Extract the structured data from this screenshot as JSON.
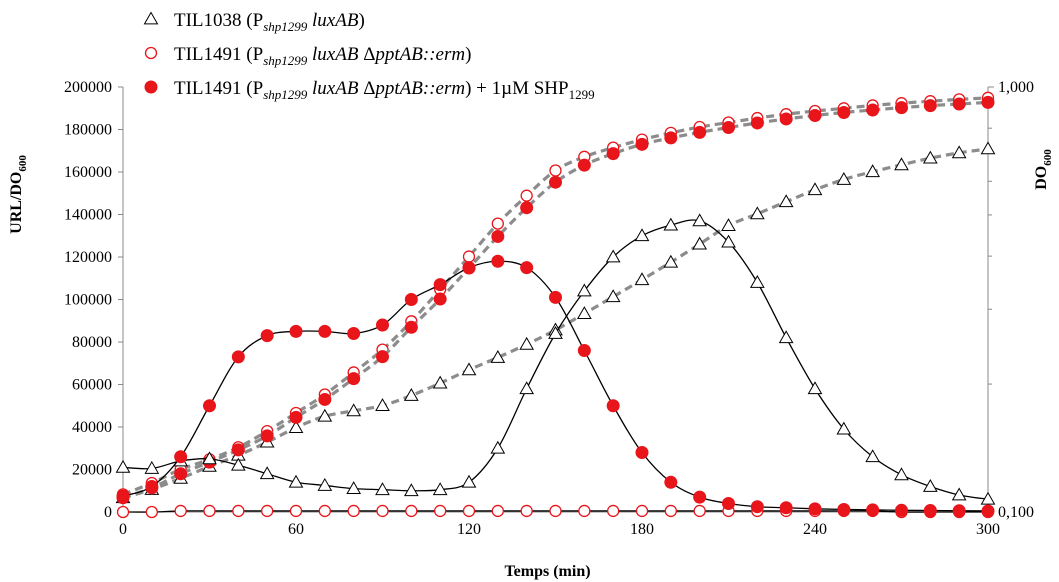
{
  "chart_data": {
    "type": "line",
    "xlabel": "Temps (min)",
    "ylabel_left": {
      "main": "URL/DO",
      "sub": "600"
    },
    "ylabel_right": {
      "main": "DO",
      "sub": "600"
    },
    "xlim": [
      0,
      300
    ],
    "ylim_left": [
      0,
      200000
    ],
    "ylim_right": [
      0.1,
      1.0
    ],
    "right_axis_scale": "log",
    "x_ticks": [
      "0",
      "60",
      "120",
      "180",
      "240",
      "300"
    ],
    "y_left_ticks": [
      "0",
      "20000",
      "40000",
      "60000",
      "80000",
      "100000",
      "120000",
      "140000",
      "160000",
      "180000",
      "200000"
    ],
    "y_right_ticks": [
      "0,100",
      "1,000"
    ],
    "legend_position": "top-left",
    "legend": [
      {
        "marker": "open-triangle",
        "color": "#000000",
        "parts": [
          [
            "TIL1038 (P",
            ""
          ],
          [
            "shp1299",
            "italic-sub"
          ],
          [
            " ",
            ""
          ],
          [
            "luxAB",
            "italic"
          ],
          [
            ")",
            ""
          ]
        ]
      },
      {
        "marker": "open-circle",
        "color": "#e8151b",
        "parts": [
          [
            "TIL1491 (P",
            ""
          ],
          [
            "shp1299",
            "italic-sub"
          ],
          [
            " ",
            ""
          ],
          [
            "luxAB",
            "italic"
          ],
          [
            " Δ",
            ""
          ],
          [
            "pptAB::erm",
            "italic"
          ],
          [
            ")",
            ""
          ]
        ]
      },
      {
        "marker": "filled-circle",
        "color": "#e8151b",
        "parts": [
          [
            "TIL1491 (P",
            ""
          ],
          [
            "shp1299",
            "italic-sub"
          ],
          [
            " ",
            ""
          ],
          [
            "luxAB",
            "italic"
          ],
          [
            " Δ",
            ""
          ],
          [
            "pptAB::erm",
            "italic"
          ],
          [
            ") + 1µM SHP",
            ""
          ],
          [
            "1299",
            "sub"
          ]
        ]
      }
    ],
    "series": [
      {
        "name": "TIL1038 (Pshp1299 luxAB)",
        "quantity": "URL/DO600",
        "axis": "left",
        "marker": "open-triangle",
        "line": "solid-black",
        "x": [
          0,
          10,
          20,
          30,
          40,
          50,
          60,
          70,
          80,
          90,
          100,
          110,
          120,
          130,
          140,
          150,
          160,
          170,
          180,
          190,
          200,
          210,
          220,
          230,
          240,
          250,
          260,
          270,
          280,
          290,
          300
        ],
        "y": [
          21000,
          20500,
          24000,
          25000,
          22000,
          18000,
          14000,
          12500,
          11000,
          10500,
          10000,
          10500,
          14000,
          30000,
          58000,
          84000,
          104000,
          120000,
          130000,
          135000,
          137000,
          127000,
          108000,
          82000,
          58000,
          39000,
          26000,
          17500,
          12000,
          8000,
          6000
        ]
      },
      {
        "name": "TIL1491 (Pshp1299 luxAB ΔpptAB::erm)",
        "quantity": "URL/DO600",
        "axis": "left",
        "marker": "open-circle",
        "line": "solid-black",
        "x": [
          0,
          10,
          20,
          30,
          40,
          50,
          60,
          70,
          80,
          90,
          100,
          110,
          120,
          130,
          140,
          150,
          160,
          170,
          180,
          190,
          200,
          210,
          220,
          230,
          240,
          250,
          260,
          270,
          280,
          290,
          300
        ],
        "y": [
          0,
          0,
          500,
          500,
          500,
          500,
          500,
          500,
          500,
          500,
          500,
          500,
          500,
          500,
          500,
          500,
          500,
          500,
          500,
          500,
          500,
          500,
          500,
          500,
          500,
          500,
          500,
          0,
          0,
          0,
          0
        ]
      },
      {
        "name": "TIL1491 (Pshp1299 luxAB ΔpptAB::erm) + 1µM SHP1299",
        "quantity": "URL/DO600",
        "axis": "left",
        "marker": "filled-circle",
        "line": "solid-black",
        "x": [
          0,
          10,
          20,
          30,
          40,
          50,
          60,
          70,
          80,
          90,
          100,
          110,
          120,
          130,
          140,
          150,
          160,
          170,
          180,
          190,
          200,
          210,
          220,
          230,
          240,
          250,
          260,
          270,
          280,
          290,
          300
        ],
        "y": [
          7500,
          12000,
          26000,
          50000,
          73000,
          83000,
          85000,
          85000,
          84000,
          88000,
          100000,
          107000,
          115000,
          118000,
          115000,
          101000,
          76000,
          50000,
          28000,
          14000,
          7000,
          4000,
          2500,
          2000,
          1500,
          1200,
          1000,
          800,
          700,
          600,
          500
        ]
      },
      {
        "name": "TIL1038 DO600",
        "quantity": "DO600",
        "axis": "right",
        "marker": "open-triangle",
        "line": "dashed-gray",
        "x": [
          0,
          10,
          20,
          30,
          40,
          50,
          60,
          70,
          80,
          90,
          100,
          110,
          120,
          130,
          140,
          150,
          160,
          170,
          180,
          190,
          200,
          210,
          220,
          230,
          240,
          250,
          260,
          270,
          280,
          290,
          300
        ],
        "y": [
          0.108,
          0.113,
          0.12,
          0.128,
          0.136,
          0.146,
          0.158,
          0.168,
          0.173,
          0.178,
          0.188,
          0.201,
          0.216,
          0.231,
          0.248,
          0.268,
          0.293,
          0.321,
          0.352,
          0.387,
          0.427,
          0.472,
          0.503,
          0.537,
          0.573,
          0.606,
          0.632,
          0.656,
          0.68,
          0.7,
          0.715
        ]
      },
      {
        "name": "TIL1491 DO600",
        "quantity": "DO600",
        "axis": "right",
        "marker": "open-circle",
        "line": "dashed-gray",
        "x": [
          0,
          10,
          20,
          30,
          40,
          50,
          60,
          70,
          80,
          90,
          100,
          110,
          120,
          130,
          140,
          150,
          160,
          170,
          180,
          190,
          200,
          210,
          220,
          230,
          240,
          250,
          260,
          270,
          280,
          290,
          300
        ],
        "y": [
          0.11,
          0.117,
          0.126,
          0.133,
          0.142,
          0.155,
          0.171,
          0.189,
          0.213,
          0.241,
          0.281,
          0.334,
          0.399,
          0.477,
          0.555,
          0.636,
          0.685,
          0.72,
          0.752,
          0.78,
          0.805,
          0.825,
          0.845,
          0.863,
          0.878,
          0.891,
          0.905,
          0.916,
          0.926,
          0.935,
          0.943
        ]
      },
      {
        "name": "TIL1491 + 1µM SHP1299 DO600",
        "quantity": "DO600",
        "axis": "right",
        "marker": "filled-circle",
        "line": "dashed-gray",
        "x": [
          0,
          10,
          20,
          30,
          40,
          50,
          60,
          70,
          80,
          90,
          100,
          110,
          120,
          130,
          140,
          150,
          160,
          170,
          180,
          190,
          200,
          210,
          220,
          230,
          240,
          250,
          260,
          270,
          280,
          290,
          300
        ],
        "y": [
          0.108,
          0.114,
          0.123,
          0.131,
          0.14,
          0.151,
          0.167,
          0.184,
          0.206,
          0.232,
          0.272,
          0.317,
          0.375,
          0.445,
          0.52,
          0.597,
          0.655,
          0.697,
          0.733,
          0.759,
          0.782,
          0.803,
          0.823,
          0.841,
          0.857,
          0.871,
          0.883,
          0.894,
          0.904,
          0.912,
          0.92
        ]
      }
    ]
  }
}
